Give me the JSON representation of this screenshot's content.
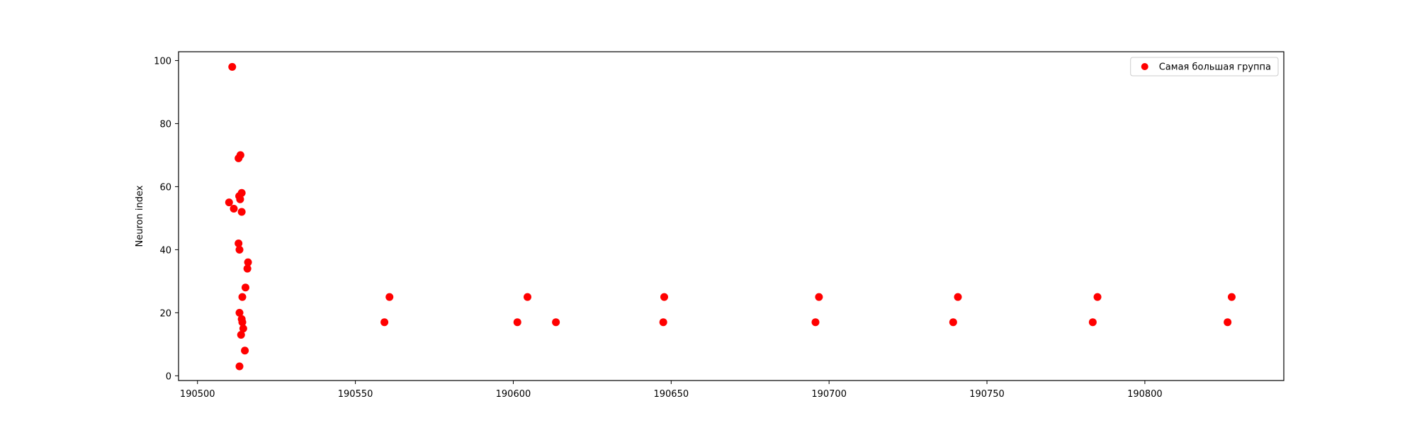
{
  "chart_data": {
    "type": "scatter",
    "title": "",
    "xlabel": "",
    "ylabel": "Neuron index",
    "xlim": [
      190494,
      190844
    ],
    "ylim": [
      -1.5,
      102.8
    ],
    "xticks": [
      190500,
      190550,
      190600,
      190650,
      190700,
      190750,
      190800
    ],
    "yticks": [
      0,
      20,
      40,
      60,
      80,
      100
    ],
    "grid": false,
    "legend_position": "top-right",
    "series": [
      {
        "name": "Самая большая группа",
        "color": "#ff0000",
        "marker": "circle",
        "points": [
          {
            "x": 190511,
            "y": 98
          },
          {
            "x": 190510,
            "y": 55
          },
          {
            "x": 190511.5,
            "y": 53
          },
          {
            "x": 190513,
            "y": 69
          },
          {
            "x": 190513.6,
            "y": 70
          },
          {
            "x": 190513.2,
            "y": 57
          },
          {
            "x": 190513.5,
            "y": 56
          },
          {
            "x": 190514,
            "y": 58
          },
          {
            "x": 190514,
            "y": 52
          },
          {
            "x": 190513,
            "y": 42
          },
          {
            "x": 190513.3,
            "y": 40
          },
          {
            "x": 190516,
            "y": 36
          },
          {
            "x": 190515.8,
            "y": 34
          },
          {
            "x": 190515.2,
            "y": 28
          },
          {
            "x": 190514.2,
            "y": 25
          },
          {
            "x": 190513.3,
            "y": 20
          },
          {
            "x": 190514,
            "y": 18
          },
          {
            "x": 190514.2,
            "y": 17
          },
          {
            "x": 190514.5,
            "y": 15
          },
          {
            "x": 190513.8,
            "y": 13
          },
          {
            "x": 190515,
            "y": 8
          },
          {
            "x": 190513.3,
            "y": 3
          },
          {
            "x": 190559.2,
            "y": 17
          },
          {
            "x": 190560.8,
            "y": 25
          },
          {
            "x": 190601.3,
            "y": 17
          },
          {
            "x": 190604.5,
            "y": 25
          },
          {
            "x": 190613.5,
            "y": 17
          },
          {
            "x": 190647.5,
            "y": 17
          },
          {
            "x": 190647.8,
            "y": 25
          },
          {
            "x": 190695.7,
            "y": 17
          },
          {
            "x": 190696.8,
            "y": 25
          },
          {
            "x": 190739.3,
            "y": 17
          },
          {
            "x": 190740.8,
            "y": 25
          },
          {
            "x": 190783.5,
            "y": 17
          },
          {
            "x": 190785,
            "y": 25
          },
          {
            "x": 190826.2,
            "y": 17
          },
          {
            "x": 190827.5,
            "y": 25
          }
        ]
      }
    ]
  }
}
